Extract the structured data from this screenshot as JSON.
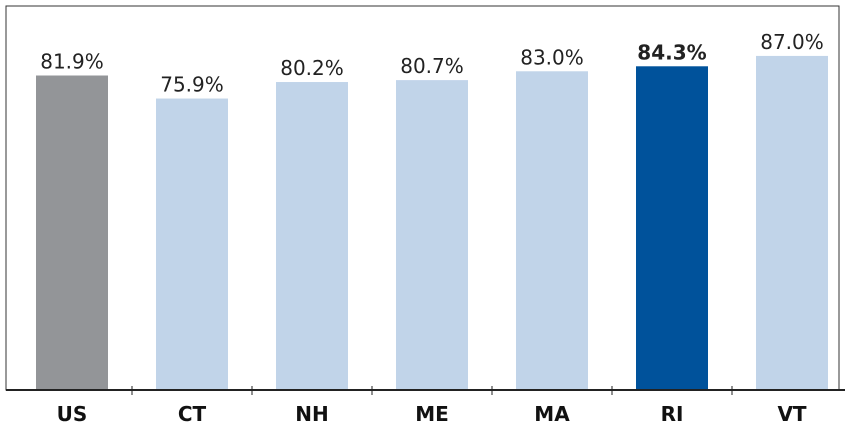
{
  "chart_data": {
    "type": "bar",
    "categories": [
      "US",
      "CT",
      "NH",
      "ME",
      "MA",
      "RI",
      "VT"
    ],
    "values": [
      81.9,
      75.9,
      80.2,
      80.7,
      83.0,
      84.3,
      87.0
    ],
    "value_labels": [
      "81.9%",
      "75.9%",
      "80.2%",
      "80.7%",
      "83.0%",
      "84.3%",
      "87.0%"
    ],
    "bar_colors": [
      "#939598",
      "#c1d4e9",
      "#c1d4e9",
      "#c1d4e9",
      "#c1d4e9",
      "#00529b",
      "#c1d4e9"
    ],
    "label_colors": [
      "#222222",
      "#222222",
      "#222222",
      "#222222",
      "#222222",
      "#1f5fa6",
      "#222222"
    ],
    "highlight_index": 5,
    "title": "",
    "xlabel": "",
    "ylabel": "",
    "ylim": [
      0,
      100
    ],
    "grid": false,
    "legend": "none"
  }
}
